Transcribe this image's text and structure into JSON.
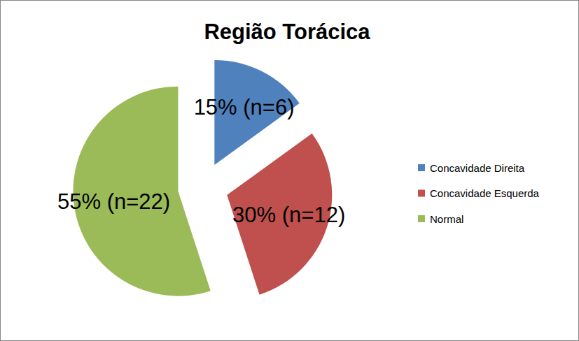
{
  "chart_data": {
    "type": "pie",
    "title": "Região Torácica",
    "categories": [
      "Concavidade Direita",
      "Concavidade Esquerda",
      "Normal"
    ],
    "values": [
      15,
      30,
      55
    ],
    "value_labels": [
      "15% (n=6)",
      "30% (n=12)",
      "55% (n=22)"
    ],
    "colors": [
      "#4f81bd",
      "#c0504d",
      "#9bbb59"
    ],
    "legend": "right",
    "data_labels": true
  }
}
